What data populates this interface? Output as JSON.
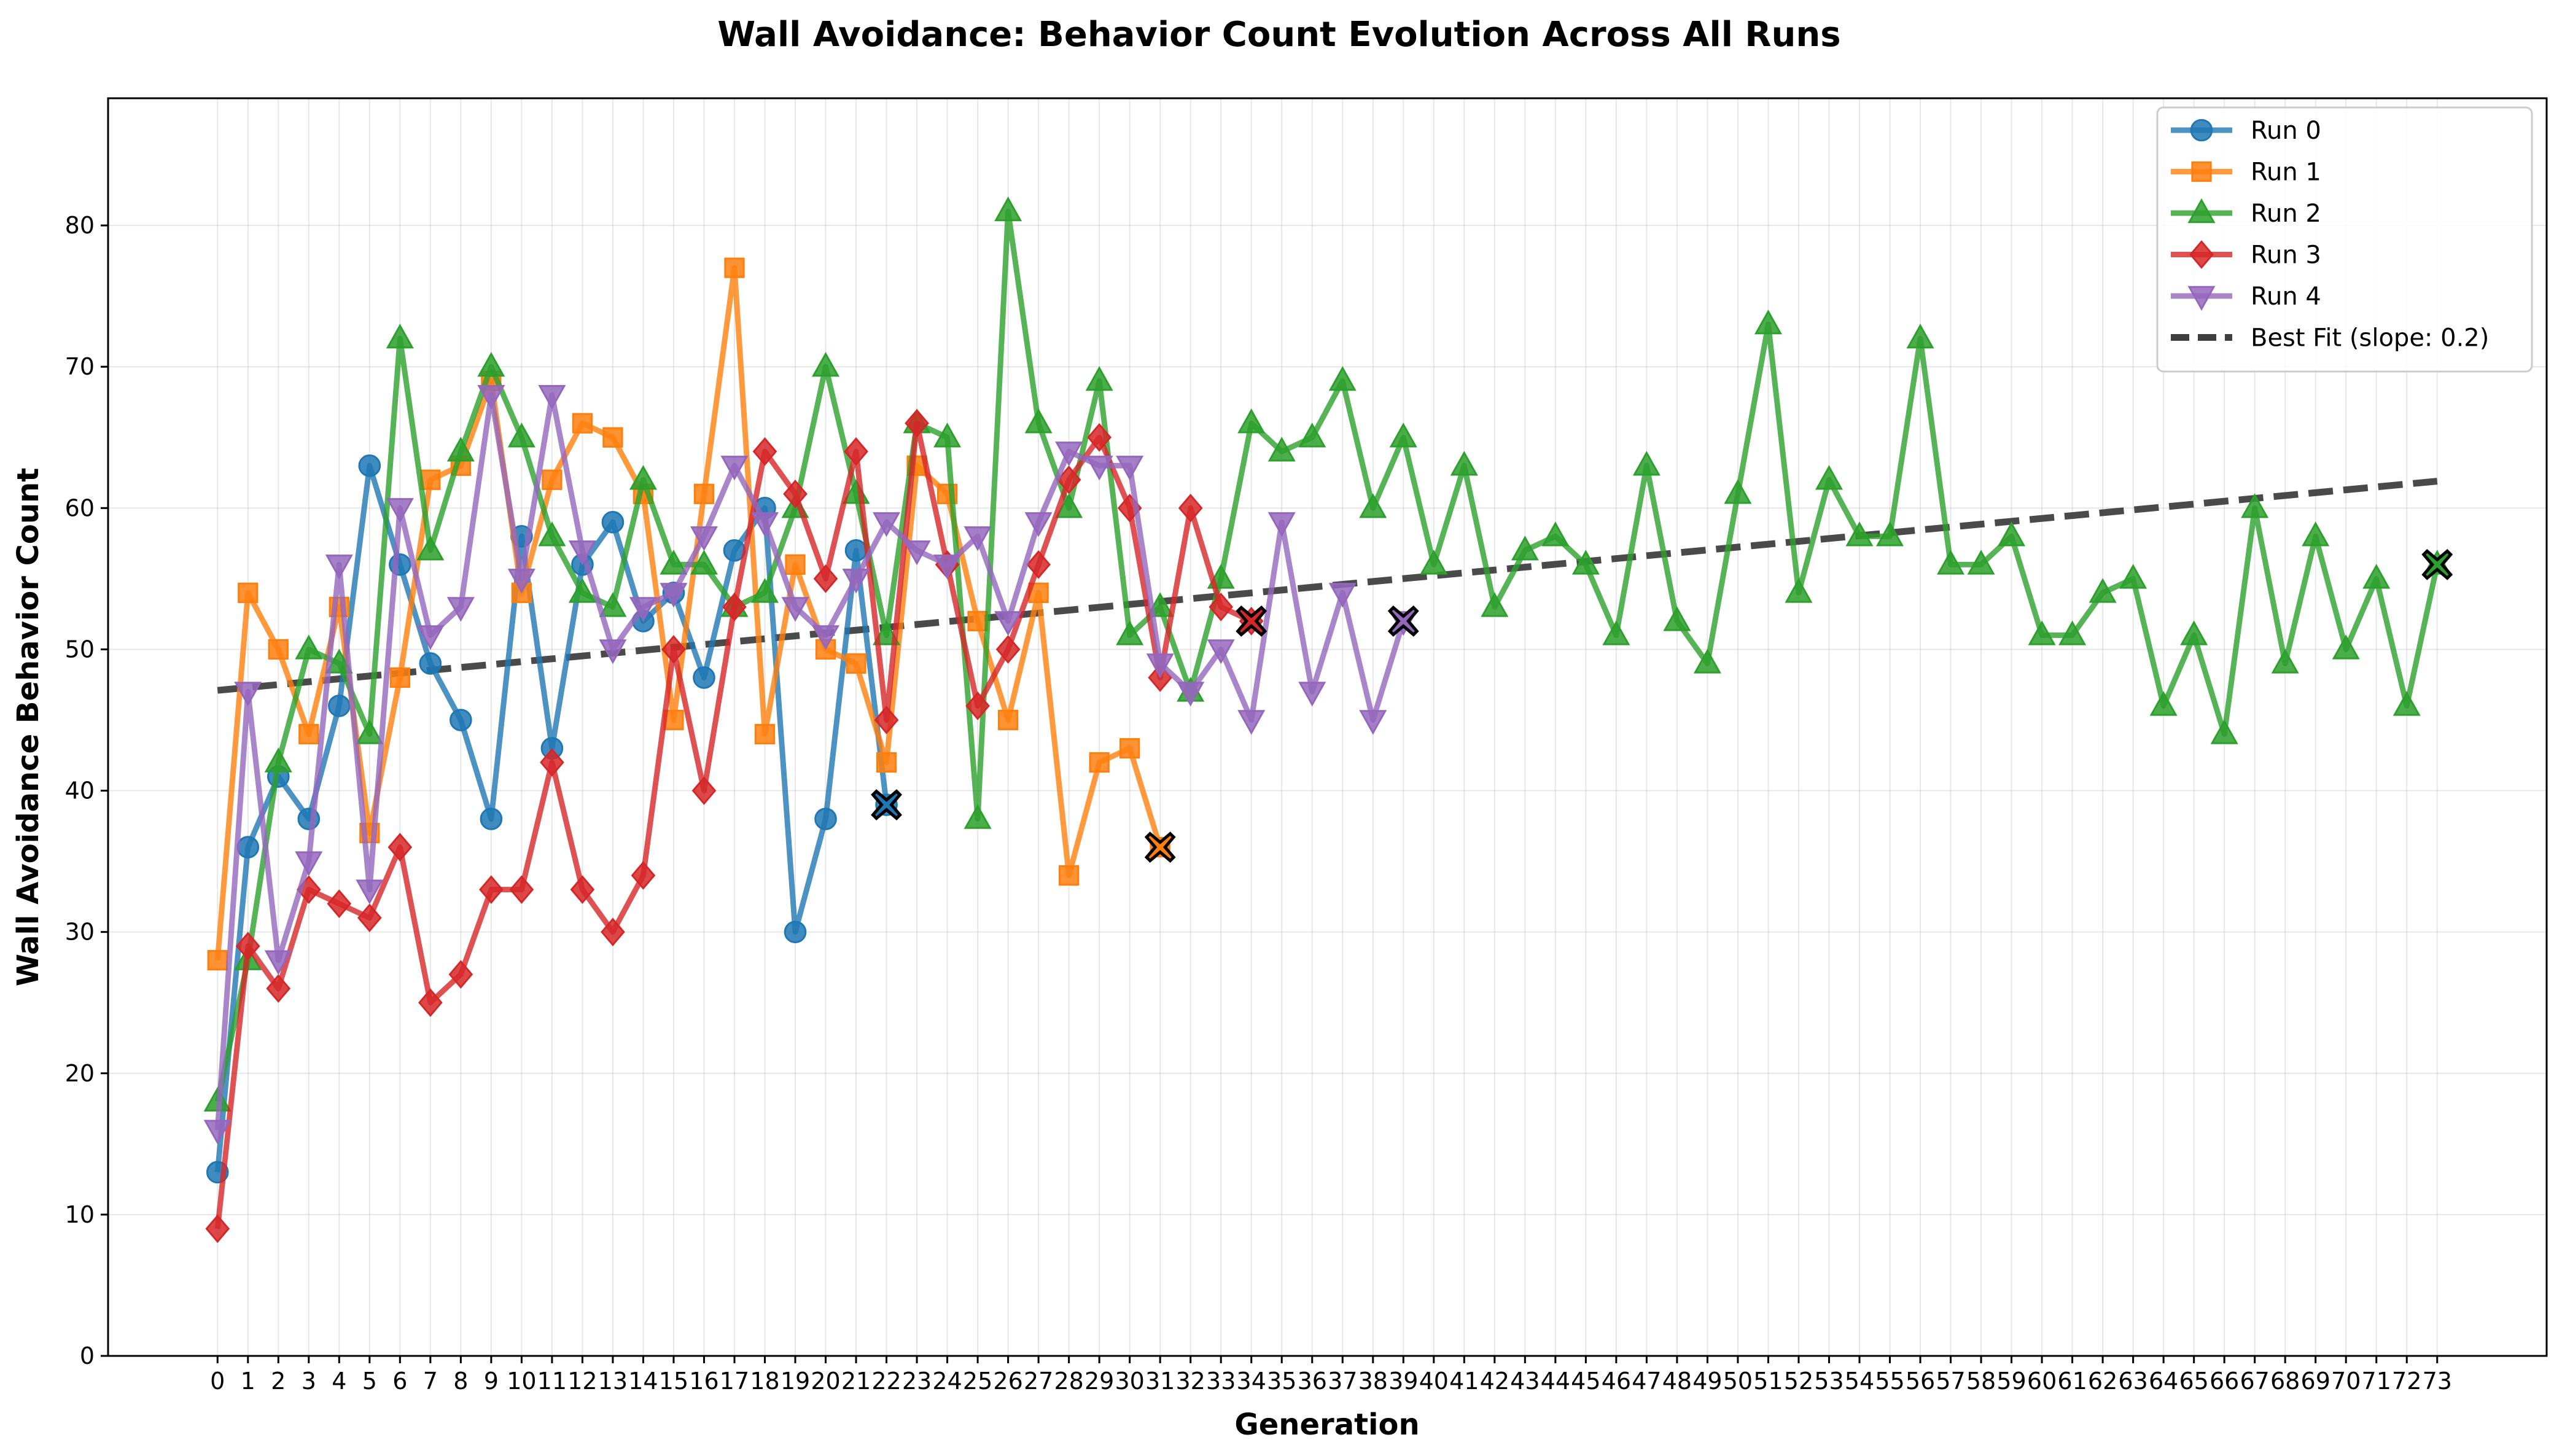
{
  "chart_data": {
    "type": "line",
    "title": "Wall Avoidance: Behavior Count Evolution Across All Runs",
    "xlabel": "Generation",
    "ylabel": "Wall Avoidance Behavior Count",
    "xlim": [
      -3.6,
      76.6
    ],
    "ylim": [
      0,
      89
    ],
    "y_ticks": [
      0,
      10,
      20,
      30,
      40,
      50,
      60,
      70,
      80
    ],
    "x_ticks": [
      0,
      1,
      2,
      3,
      4,
      5,
      6,
      7,
      8,
      9,
      10,
      11,
      12,
      13,
      14,
      15,
      16,
      17,
      18,
      19,
      20,
      21,
      22,
      23,
      24,
      25,
      26,
      27,
      28,
      29,
      30,
      31,
      32,
      33,
      34,
      35,
      36,
      37,
      38,
      39,
      40,
      41,
      42,
      43,
      44,
      45,
      46,
      47,
      48,
      49,
      50,
      51,
      52,
      53,
      54,
      55,
      56,
      57,
      58,
      59,
      60,
      61,
      62,
      63,
      64,
      65,
      66,
      67,
      68,
      69,
      70,
      71,
      72,
      73
    ],
    "grid": true,
    "legend_position": "top-right",
    "series": [
      {
        "name": "Run 0",
        "color": "#1f77b4",
        "marker": "circle",
        "values": [
          13,
          36,
          41,
          38,
          46,
          63,
          56,
          49,
          45,
          38,
          58,
          43,
          56,
          59,
          52,
          54,
          48,
          57,
          60,
          30,
          38,
          57,
          39
        ]
      },
      {
        "name": "Run 1",
        "color": "#ff7f0e",
        "marker": "square",
        "values": [
          28,
          54,
          50,
          44,
          53,
          37,
          48,
          62,
          63,
          69,
          54,
          62,
          66,
          65,
          61,
          45,
          61,
          77,
          44,
          56,
          50,
          49,
          42,
          63,
          61,
          52,
          45,
          54,
          34,
          42,
          43,
          36
        ]
      },
      {
        "name": "Run 2",
        "color": "#2ca02c",
        "marker": "triangle-up",
        "values": [
          18,
          28,
          42,
          50,
          49,
          44,
          72,
          57,
          64,
          70,
          65,
          58,
          54,
          53,
          62,
          56,
          56,
          53,
          54,
          60,
          70,
          61,
          51,
          66,
          65,
          38,
          81,
          66,
          60,
          69,
          51,
          53,
          47,
          55,
          66,
          64,
          65,
          69,
          60,
          65,
          56,
          63,
          53,
          57,
          58,
          56,
          51,
          63,
          52,
          49,
          61,
          73,
          54,
          62,
          58,
          58,
          72,
          56,
          56,
          58,
          51,
          51,
          54,
          55,
          46,
          51,
          44,
          60,
          49,
          58,
          50,
          55,
          46,
          56
        ]
      },
      {
        "name": "Run 3",
        "color": "#d62728",
        "marker": "diamond",
        "values": [
          9,
          29,
          26,
          33,
          32,
          31,
          36,
          25,
          27,
          33,
          33,
          42,
          33,
          30,
          34,
          50,
          40,
          53,
          64,
          61,
          55,
          64,
          45,
          66,
          56,
          46,
          50,
          56,
          62,
          65,
          60,
          48,
          60,
          53,
          52
        ]
      },
      {
        "name": "Run 4",
        "color": "#9467bd",
        "marker": "triangle-down",
        "values": [
          16,
          47,
          28,
          35,
          56,
          33,
          60,
          51,
          53,
          68,
          55,
          68,
          57,
          50,
          53,
          54,
          58,
          63,
          59,
          53,
          51,
          55,
          59,
          57,
          56,
          58,
          52,
          59,
          64,
          63,
          63,
          49,
          47,
          50,
          45,
          59,
          47,
          54,
          45,
          52
        ]
      }
    ],
    "best_fit": {
      "name": "Best Fit (slope: 0.2)",
      "color": "#404040",
      "x": [
        0,
        73
      ],
      "y": [
        47.1,
        61.9
      ]
    },
    "end_markers": [
      {
        "series": "Run 0",
        "x": 22,
        "y": 39
      },
      {
        "series": "Run 1",
        "x": 31,
        "y": 36
      },
      {
        "series": "Run 2",
        "x": 73,
        "y": 56
      },
      {
        "series": "Run 3",
        "x": 34,
        "y": 52
      },
      {
        "series": "Run 4",
        "x": 39,
        "y": 52
      }
    ]
  }
}
